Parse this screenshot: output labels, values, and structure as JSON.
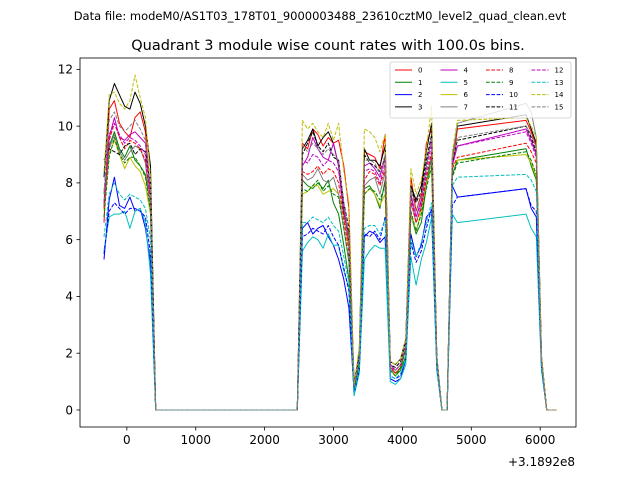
{
  "chart_data": {
    "type": "line",
    "suptitle": "Data file: modeM0/AS1T03_178T01_9000003488_23610cztM0_level2_quad_clean.evt",
    "title": "Quadrant 3 module wise count rates with 100.0s bins.",
    "xlabel": "",
    "ylabel": "",
    "x_offset_label": "+3.1892e8",
    "xlim": [
      -680,
      6520
    ],
    "ylim": [
      -0.6,
      12.4
    ],
    "xticks": [
      0,
      1000,
      2000,
      3000,
      4000,
      5000,
      6000
    ],
    "xtick_labels": [
      "0",
      "1000",
      "2000",
      "3000",
      "4000",
      "5000",
      "6000"
    ],
    "yticks": [
      0,
      2,
      4,
      6,
      8,
      10,
      12
    ],
    "ytick_labels": [
      "0",
      "2",
      "4",
      "6",
      "8",
      "10",
      "12"
    ],
    "x": [
      -331,
      -256,
      -181,
      -106,
      -31,
      44,
      119,
      194,
      269,
      344,
      419,
      2474,
      2549,
      2624,
      2699,
      2774,
      2849,
      2924,
      2999,
      3074,
      3149,
      3224,
      3299,
      3374,
      3449,
      3524,
      3599,
      3674,
      3749,
      3824,
      3899,
      3974,
      4049,
      4124,
      4199,
      4274,
      4349,
      4424,
      4499,
      4574,
      4649,
      4724,
      4799,
      5794,
      5869,
      5944,
      6019,
      6094,
      6169,
      6244
    ],
    "series": [
      {
        "name": "0",
        "color": "#ff0000",
        "dash": "solid",
        "values": [
          6.6,
          10.6,
          10.9,
          10.1,
          9.8,
          9.6,
          10.3,
          10.5,
          9.8,
          7.6,
          0,
          0,
          9.4,
          9.2,
          9.9,
          9.7,
          9.3,
          9.6,
          9.4,
          9.5,
          8.6,
          7.1,
          0.8,
          2.0,
          9.1,
          9.0,
          8.9,
          8.5,
          9.7,
          1.5,
          1.3,
          1.5,
          2.3,
          8.2,
          7.0,
          7.6,
          9.4,
          9.9,
          1.8,
          0,
          0,
          8.6,
          9.9,
          10.2,
          9.8,
          9.3,
          1.8,
          0,
          0,
          0
        ]
      },
      {
        "name": "1",
        "color": "#008000",
        "dash": "solid",
        "values": [
          7.6,
          9.3,
          9.8,
          9.2,
          8.9,
          9.3,
          8.8,
          8.6,
          8.3,
          7.2,
          0,
          0,
          8.1,
          7.9,
          7.8,
          8.0,
          7.8,
          8.1,
          7.3,
          6.9,
          5.8,
          4.6,
          0.7,
          1.6,
          7.8,
          7.9,
          7.6,
          7.1,
          8.1,
          1.4,
          1.2,
          1.4,
          1.9,
          6.9,
          6.2,
          6.6,
          7.9,
          8.9,
          1.6,
          0,
          0,
          8.3,
          8.8,
          9.2,
          8.6,
          8.1,
          1.7,
          0,
          0,
          0
        ]
      },
      {
        "name": "2",
        "color": "#0000ff",
        "dash": "solid",
        "values": [
          5.3,
          7.4,
          8.2,
          7.2,
          7.1,
          7.5,
          7.0,
          7.1,
          6.4,
          5.2,
          0,
          0,
          6.4,
          6.6,
          6.2,
          6.4,
          6.5,
          6.1,
          5.8,
          5.3,
          4.6,
          3.6,
          0.6,
          1.5,
          6.1,
          6.3,
          6.2,
          5.9,
          6.1,
          1.1,
          1.0,
          1.1,
          1.8,
          6.2,
          5.4,
          5.8,
          6.8,
          7.0,
          1.6,
          0,
          0,
          7.9,
          7.5,
          7.8,
          7.1,
          6.8,
          1.5,
          0,
          0,
          0
        ]
      },
      {
        "name": "3",
        "color": "#000000",
        "dash": "solid",
        "values": [
          8.2,
          10.9,
          11.5,
          11.1,
          10.7,
          10.6,
          11.2,
          10.8,
          10.0,
          8.6,
          0,
          0,
          9.2,
          9.5,
          9.9,
          9.3,
          9.6,
          9.8,
          9.4,
          8.6,
          6.9,
          6.2,
          0.9,
          2.1,
          9.2,
          8.8,
          8.8,
          8.6,
          9.3,
          1.7,
          1.6,
          1.8,
          2.5,
          7.9,
          7.4,
          7.9,
          9.1,
          10.1,
          1.9,
          0,
          0,
          8.9,
          10.0,
          10.4,
          9.9,
          9.4,
          1.9,
          0,
          0,
          0
        ]
      },
      {
        "name": "4",
        "color": "#bf00bf",
        "dash": "solid",
        "values": [
          7.2,
          9.6,
          10.3,
          9.6,
          9.5,
          9.7,
          9.8,
          9.6,
          9.4,
          7.7,
          0,
          0,
          8.6,
          8.9,
          9.6,
          9.2,
          8.9,
          8.8,
          9.4,
          8.6,
          7.2,
          5.8,
          0.8,
          1.9,
          8.6,
          8.7,
          8.5,
          8.2,
          8.9,
          1.6,
          1.4,
          1.6,
          2.2,
          7.6,
          6.8,
          7.4,
          8.6,
          9.6,
          1.8,
          0,
          0,
          8.6,
          9.3,
          9.9,
          9.5,
          9.0,
          1.8,
          0,
          0,
          0
        ]
      },
      {
        "name": "5",
        "color": "#00bfbf",
        "dash": "solid",
        "values": [
          5.6,
          6.8,
          6.9,
          6.9,
          7.0,
          6.4,
          7.0,
          7.1,
          6.6,
          4.8,
          0,
          0,
          5.6,
          5.9,
          6.1,
          6.0,
          5.7,
          6.2,
          5.8,
          5.8,
          4.9,
          4.3,
          0.5,
          1.3,
          5.3,
          5.6,
          5.8,
          5.7,
          5.7,
          1.0,
          0.9,
          1.1,
          1.6,
          5.4,
          4.4,
          5.3,
          5.9,
          6.8,
          1.4,
          0,
          0,
          6.9,
          6.6,
          6.9,
          6.4,
          6.1,
          1.4,
          0,
          0,
          0
        ]
      },
      {
        "name": "6",
        "color": "#bfbf00",
        "dash": "solid",
        "values": [
          7.0,
          9.0,
          9.5,
          9.0,
          8.5,
          8.9,
          8.6,
          8.4,
          7.9,
          6.9,
          0,
          0,
          7.6,
          7.7,
          7.9,
          7.9,
          7.6,
          7.7,
          7.8,
          7.6,
          6.8,
          5.7,
          0.7,
          1.7,
          7.6,
          7.8,
          7.6,
          7.2,
          7.6,
          1.4,
          1.2,
          1.5,
          2.1,
          6.9,
          6.3,
          7.0,
          8.0,
          8.5,
          1.6,
          0,
          0,
          8.6,
          8.8,
          9.0,
          8.7,
          8.2,
          1.7,
          0,
          0,
          0
        ]
      },
      {
        "name": "7",
        "color": "#808080",
        "dash": "solid",
        "values": [
          7.4,
          9.2,
          9.7,
          9.1,
          8.8,
          9.1,
          9.3,
          9.2,
          8.7,
          7.1,
          0,
          0,
          8.3,
          8.1,
          8.2,
          8.5,
          8.1,
          8.0,
          8.2,
          7.6,
          6.4,
          5.2,
          0.7,
          1.8,
          7.9,
          8.1,
          8.2,
          7.6,
          8.4,
          1.4,
          1.3,
          1.5,
          2.2,
          7.3,
          6.6,
          7.2,
          8.1,
          9.0,
          1.7,
          0,
          0,
          8.8,
          10.1,
          10.8,
          10.5,
          9.6,
          1.8,
          0,
          0,
          0
        ]
      },
      {
        "name": "8",
        "color": "#ff0000",
        "dash": "dashed",
        "values": [
          7.1,
          9.5,
          10.1,
          9.6,
          9.2,
          9.5,
          9.4,
          9.2,
          8.8,
          7.4,
          0,
          0,
          8.4,
          8.3,
          8.4,
          8.6,
          8.3,
          8.5,
          8.4,
          8.0,
          6.7,
          5.6,
          0.7,
          1.8,
          8.1,
          8.4,
          8.3,
          7.9,
          8.5,
          1.5,
          1.3,
          1.5,
          2.2,
          7.4,
          6.6,
          7.1,
          8.2,
          9.1,
          1.7,
          0,
          0,
          8.5,
          8.9,
          9.4,
          9.1,
          8.7,
          1.8,
          0,
          0,
          0
        ]
      },
      {
        "name": "9",
        "color": "#008000",
        "dash": "dashed",
        "values": [
          6.8,
          8.9,
          9.6,
          9.0,
          8.7,
          8.9,
          8.9,
          8.6,
          8.2,
          7.0,
          0,
          0,
          7.8,
          7.7,
          7.9,
          8.1,
          7.7,
          7.9,
          7.6,
          7.5,
          6.4,
          5.3,
          0.7,
          1.7,
          7.6,
          7.8,
          7.7,
          7.4,
          7.9,
          1.4,
          1.2,
          1.5,
          2.1,
          7.0,
          6.3,
          6.9,
          7.8,
          8.6,
          1.6,
          0,
          0,
          8.2,
          8.7,
          9.1,
          8.8,
          8.3,
          1.7,
          0,
          0,
          0
        ]
      },
      {
        "name": "10",
        "color": "#0000ff",
        "dash": "dashed",
        "values": [
          5.5,
          7.0,
          7.3,
          7.1,
          6.9,
          7.1,
          7.1,
          7.0,
          6.8,
          5.5,
          0,
          0,
          6.1,
          6.2,
          6.4,
          6.3,
          6.2,
          6.5,
          6.1,
          5.8,
          5.0,
          4.2,
          0.6,
          1.4,
          6.2,
          6.1,
          6.3,
          6.0,
          6.8,
          1.2,
          1.1,
          1.2,
          1.8,
          5.9,
          5.2,
          5.6,
          6.4,
          7.1,
          1.5,
          0,
          0,
          7.2,
          7.5,
          7.8,
          7.2,
          7.0,
          1.5,
          0,
          0,
          0
        ]
      },
      {
        "name": "11",
        "color": "#000000",
        "dash": "dashed",
        "values": [
          8.8,
          9.2,
          9.1,
          9.0,
          9.3,
          9.4,
          9.0,
          9.2,
          9.1,
          7.9,
          0,
          0,
          9.0,
          9.4,
          9.8,
          9.3,
          9.1,
          9.4,
          8.9,
          8.8,
          7.3,
          6.4,
          0.8,
          2.0,
          9.0,
          8.7,
          8.6,
          8.4,
          8.9,
          1.6,
          1.5,
          1.7,
          2.4,
          7.8,
          7.3,
          7.7,
          8.8,
          9.7,
          1.8,
          0,
          0,
          8.7,
          9.5,
          10.0,
          9.6,
          9.1,
          1.8,
          0,
          0,
          0
        ]
      },
      {
        "name": "12",
        "color": "#bf00bf",
        "dash": "dashed",
        "values": [
          7.3,
          9.7,
          10.1,
          9.7,
          9.4,
          9.6,
          9.5,
          9.3,
          9.0,
          7.5,
          0,
          0,
          8.8,
          8.7,
          9.0,
          8.9,
          8.6,
          8.8,
          8.7,
          8.4,
          7.0,
          5.9,
          0.8,
          1.9,
          8.4,
          8.5,
          8.4,
          8.0,
          8.7,
          1.5,
          1.4,
          1.6,
          2.2,
          7.5,
          6.8,
          7.3,
          8.4,
          9.4,
          1.7,
          0,
          0,
          8.7,
          9.3,
          9.8,
          9.4,
          8.9,
          1.8,
          0,
          0,
          0
        ]
      },
      {
        "name": "13",
        "color": "#00bfbf",
        "dash": "dashed",
        "values": [
          6.1,
          7.6,
          8.0,
          7.6,
          7.4,
          7.6,
          7.5,
          7.4,
          7.1,
          6.0,
          0,
          0,
          6.6,
          6.6,
          6.8,
          6.7,
          6.6,
          6.8,
          6.5,
          6.3,
          5.4,
          4.5,
          0.6,
          1.5,
          6.4,
          6.5,
          6.5,
          6.2,
          6.7,
          1.2,
          1.1,
          1.3,
          1.8,
          6.0,
          5.4,
          5.9,
          6.6,
          7.3,
          1.5,
          0,
          0,
          7.9,
          8.2,
          8.3,
          8.1,
          7.7,
          1.6,
          0,
          0,
          0
        ]
      },
      {
        "name": "14",
        "color": "#bfbf00",
        "dash": "dashed",
        "values": [
          8.4,
          11.1,
          11.2,
          10.8,
          10.6,
          10.9,
          11.8,
          11.0,
          10.3,
          8.2,
          0,
          0,
          10.2,
          9.9,
          10.1,
          9.8,
          9.6,
          10.1,
          9.5,
          10.1,
          8.4,
          7.3,
          0.9,
          2.2,
          9.9,
          9.8,
          9.6,
          9.1,
          9.7,
          1.7,
          1.6,
          1.8,
          2.5,
          8.5,
          7.6,
          8.1,
          9.2,
          10.7,
          1.9,
          0,
          0,
          9.1,
          10.2,
          10.3,
          10.0,
          9.6,
          1.9,
          0,
          0,
          0
        ]
      },
      {
        "name": "15",
        "color": "#808080",
        "dash": "dashed",
        "values": [
          7.7,
          10.2,
          10.5,
          10.0,
          9.8,
          10.0,
          10.2,
          9.9,
          9.5,
          7.8,
          0,
          0,
          9.3,
          9.1,
          9.4,
          9.2,
          9.0,
          9.2,
          9.0,
          8.8,
          7.3,
          6.1,
          0.8,
          1.9,
          8.8,
          8.8,
          8.7,
          8.3,
          9.0,
          1.5,
          1.4,
          1.6,
          2.3,
          7.8,
          7.0,
          7.5,
          8.6,
          9.6,
          1.8,
          0,
          0,
          8.8,
          9.6,
          10.0,
          9.7,
          9.2,
          1.8,
          0,
          0,
          0
        ]
      }
    ]
  }
}
